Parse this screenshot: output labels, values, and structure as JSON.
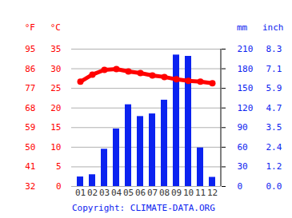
{
  "chart_data": {
    "type": "bar_line",
    "categories": [
      "01",
      "02",
      "03",
      "04",
      "05",
      "06",
      "07",
      "08",
      "09",
      "10",
      "11",
      "12"
    ],
    "series": [
      {
        "type": "bar",
        "color": "#0b22f0",
        "axis": "y2",
        "values": [
          14.6,
          18,
          57,
          88,
          125,
          107,
          111,
          132,
          201,
          199,
          59,
          14
        ]
      },
      {
        "type": "line",
        "color": "#ff0000",
        "marker": "circle",
        "values": [
          26.7,
          28.5,
          29.7,
          29.9,
          29.3,
          28.9,
          28.3,
          27.9,
          27.3,
          26.9,
          26.7,
          26.3
        ]
      }
    ],
    "ylabel": "°C",
    "ylabel_alt": "°F",
    "ylim": [
      0,
      35
    ],
    "yticks": [
      0,
      5,
      10,
      15,
      20,
      25,
      30,
      35
    ],
    "yticks_alt": [
      32,
      41,
      50,
      59,
      68,
      77,
      86,
      95
    ],
    "y2label": "mm",
    "y2label_alt": "inch",
    "y2lim": [
      0,
      210
    ],
    "y2ticks": [
      0,
      30,
      60,
      90,
      120,
      150,
      180,
      210
    ],
    "y2ticks_alt": [
      "0.0",
      "1.2",
      "2.4",
      "3.5",
      "4.7",
      "5.9",
      "7.1",
      "8.3"
    ],
    "caption": "Copyright: CLIMATE-DATA.ORG",
    "grid": true
  }
}
